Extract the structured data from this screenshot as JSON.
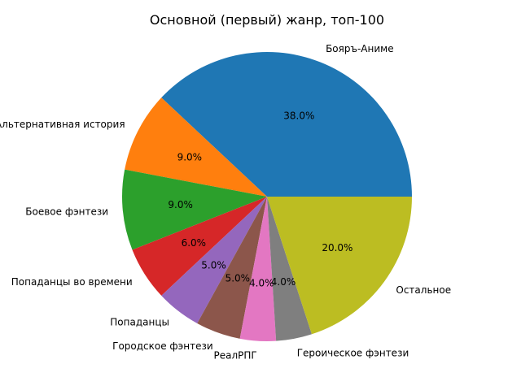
{
  "chart_data": {
    "type": "pie",
    "title": "Основной (первый) жанр, топ-100",
    "slices": [
      {
        "label": "Бояръ-Аниме",
        "value": 38.0,
        "pct_label": "38.0%",
        "color": "#1f77b4"
      },
      {
        "label": "Альтернативная история",
        "value": 9.0,
        "pct_label": "9.0%",
        "color": "#ff7f0e"
      },
      {
        "label": "Боевое фэнтези",
        "value": 9.0,
        "pct_label": "9.0%",
        "color": "#2ca02c"
      },
      {
        "label": "Попаданцы во времени",
        "value": 6.0,
        "pct_label": "6.0%",
        "color": "#d62728"
      },
      {
        "label": "Попаданцы",
        "value": 5.0,
        "pct_label": "5.0%",
        "color": "#9467bd"
      },
      {
        "label": "Городское фэнтези",
        "value": 5.0,
        "pct_label": "5.0%",
        "color": "#8c564b"
      },
      {
        "label": "РеалРПГ",
        "value": 4.0,
        "pct_label": "4.0%",
        "color": "#e377c2"
      },
      {
        "label": "Героическое фэнтези",
        "value": 4.0,
        "pct_label": "4.0%",
        "color": "#7f7f7f"
      },
      {
        "label": "Остальное",
        "value": 20.0,
        "pct_label": "20.0%",
        "color": "#bcbd22"
      }
    ]
  }
}
